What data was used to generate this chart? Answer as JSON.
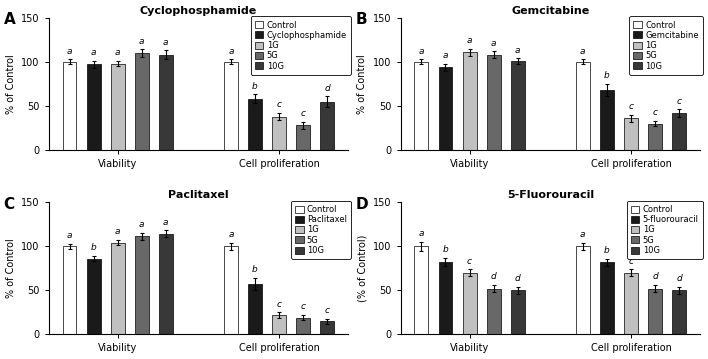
{
  "panels": [
    {
      "label": "A",
      "title": "Cyclophosphamide",
      "ylabel": "% of Control",
      "drug_name": "Cyclophosphamide",
      "bars": [
        {
          "name": "Control",
          "color": "#ffffff",
          "edgecolor": "#000000",
          "viability": 100,
          "viability_err": 3,
          "prolif": 100,
          "prolif_err": 3
        },
        {
          "name": "Cyclophosphamide",
          "color": "#1a1a1a",
          "edgecolor": "#000000",
          "viability": 97,
          "viability_err": 4,
          "prolif": 58,
          "prolif_err": 5
        },
        {
          "name": "1G",
          "color": "#c0c0c0",
          "edgecolor": "#000000",
          "viability": 98,
          "viability_err": 3,
          "prolif": 38,
          "prolif_err": 4
        },
        {
          "name": "5G",
          "color": "#686868",
          "edgecolor": "#000000",
          "viability": 110,
          "viability_err": 4,
          "prolif": 28,
          "prolif_err": 4
        },
        {
          "name": "10G",
          "color": "#383838",
          "edgecolor": "#000000",
          "viability": 108,
          "viability_err": 5,
          "prolif": 55,
          "prolif_err": 6
        }
      ],
      "viability_letters": [
        "a",
        "a",
        "a",
        "a",
        "a"
      ],
      "prolif_letters": [
        "a",
        "b",
        "c",
        "c",
        "d"
      ]
    },
    {
      "label": "B",
      "title": "Gemcitabine",
      "ylabel": "% of Control",
      "drug_name": "Gemcitabine",
      "bars": [
        {
          "name": "Control",
          "color": "#ffffff",
          "edgecolor": "#000000",
          "viability": 100,
          "viability_err": 3,
          "prolif": 100,
          "prolif_err": 3
        },
        {
          "name": "Gemcitabine",
          "color": "#1a1a1a",
          "edgecolor": "#000000",
          "viability": 94,
          "viability_err": 4,
          "prolif": 68,
          "prolif_err": 7
        },
        {
          "name": "1G",
          "color": "#c0c0c0",
          "edgecolor": "#000000",
          "viability": 111,
          "viability_err": 4,
          "prolif": 36,
          "prolif_err": 4
        },
        {
          "name": "5G",
          "color": "#686868",
          "edgecolor": "#000000",
          "viability": 108,
          "viability_err": 4,
          "prolif": 30,
          "prolif_err": 3
        },
        {
          "name": "10G",
          "color": "#383838",
          "edgecolor": "#000000",
          "viability": 101,
          "viability_err": 3,
          "prolif": 42,
          "prolif_err": 4
        }
      ],
      "viability_letters": [
        "a",
        "a",
        "a",
        "a",
        "a"
      ],
      "prolif_letters": [
        "a",
        "b",
        "c",
        "c",
        "c"
      ]
    },
    {
      "label": "C",
      "title": "Paclitaxel",
      "ylabel": "% of Control",
      "drug_name": "Paclitaxel",
      "bars": [
        {
          "name": "Control",
          "color": "#ffffff",
          "edgecolor": "#000000",
          "viability": 100,
          "viability_err": 3,
          "prolif": 100,
          "prolif_err": 4
        },
        {
          "name": "Paclitaxel",
          "color": "#1a1a1a",
          "edgecolor": "#000000",
          "viability": 86,
          "viability_err": 3,
          "prolif": 57,
          "prolif_err": 7
        },
        {
          "name": "1G",
          "color": "#c0c0c0",
          "edgecolor": "#000000",
          "viability": 104,
          "viability_err": 3,
          "prolif": 22,
          "prolif_err": 3
        },
        {
          "name": "5G",
          "color": "#686868",
          "edgecolor": "#000000",
          "viability": 111,
          "viability_err": 4,
          "prolif": 19,
          "prolif_err": 3
        },
        {
          "name": "10G",
          "color": "#383838",
          "edgecolor": "#000000",
          "viability": 114,
          "viability_err": 4,
          "prolif": 15,
          "prolif_err": 3
        }
      ],
      "viability_letters": [
        "a",
        "b",
        "a",
        "a",
        "a"
      ],
      "prolif_letters": [
        "a",
        "b",
        "c",
        "c",
        "c"
      ]
    },
    {
      "label": "D",
      "title": "5-Fluorouracil",
      "ylabel": "(% of Control)",
      "drug_name": "5-fluorouracil",
      "bars": [
        {
          "name": "Control",
          "color": "#ffffff",
          "edgecolor": "#000000",
          "viability": 100,
          "viability_err": 5,
          "prolif": 100,
          "prolif_err": 4
        },
        {
          "name": "5-fluorouracil",
          "color": "#1a1a1a",
          "edgecolor": "#000000",
          "viability": 82,
          "viability_err": 5,
          "prolif": 82,
          "prolif_err": 4
        },
        {
          "name": "1G",
          "color": "#c0c0c0",
          "edgecolor": "#000000",
          "viability": 70,
          "viability_err": 4,
          "prolif": 70,
          "prolif_err": 4
        },
        {
          "name": "5G",
          "color": "#686868",
          "edgecolor": "#000000",
          "viability": 52,
          "viability_err": 4,
          "prolif": 52,
          "prolif_err": 4
        },
        {
          "name": "10G",
          "color": "#383838",
          "edgecolor": "#000000",
          "viability": 50,
          "viability_err": 4,
          "prolif": 50,
          "prolif_err": 4
        }
      ],
      "viability_letters": [
        "a",
        "b",
        "c",
        "d",
        "d"
      ],
      "prolif_letters": [
        "a",
        "b",
        "c",
        "d",
        "d"
      ]
    }
  ],
  "ylim": [
    0,
    150
  ],
  "yticks": [
    0,
    50,
    100,
    150
  ],
  "background": "#ffffff"
}
